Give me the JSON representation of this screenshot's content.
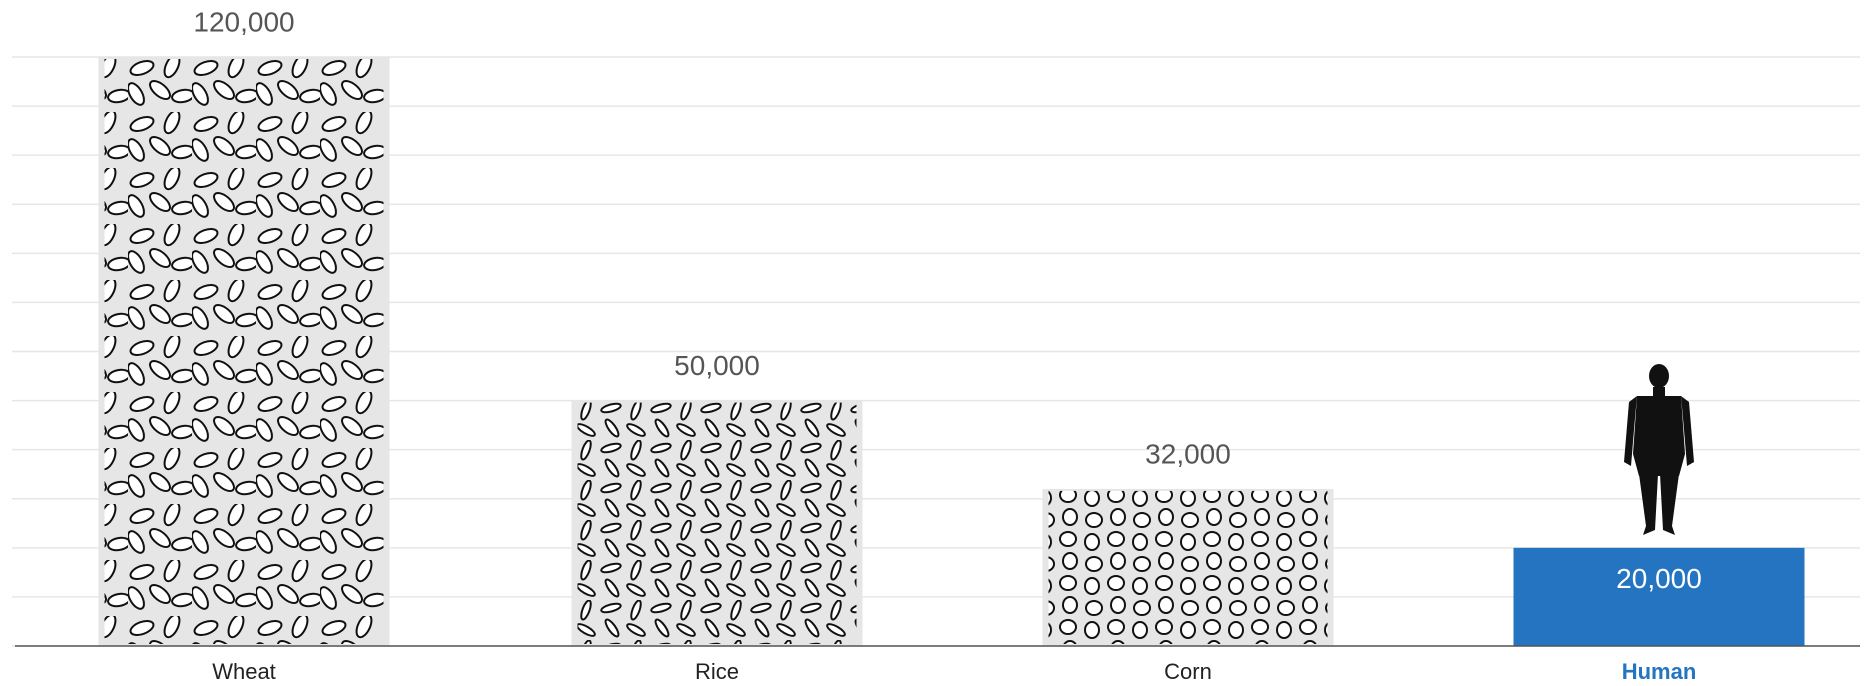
{
  "chart_data": {
    "type": "bar",
    "categories": [
      "Wheat",
      "Rice",
      "Corn",
      "Human"
    ],
    "values": [
      120000,
      50000,
      32000,
      20000
    ],
    "value_labels": [
      "120,000",
      "50,000",
      "32,000",
      "20,000"
    ],
    "colors": [
      "#e6e6e6",
      "#e6e6e6",
      "#e6e6e6",
      "#2474c2"
    ],
    "category_label_colors": [
      "#222222",
      "#222222",
      "#222222",
      "#2474c2"
    ],
    "ylim": [
      0,
      120000
    ],
    "yticks": [
      0,
      10000,
      20000,
      30000,
      40000,
      50000,
      60000,
      70000,
      80000,
      90000,
      100000,
      110000,
      120000
    ],
    "grid": true
  }
}
